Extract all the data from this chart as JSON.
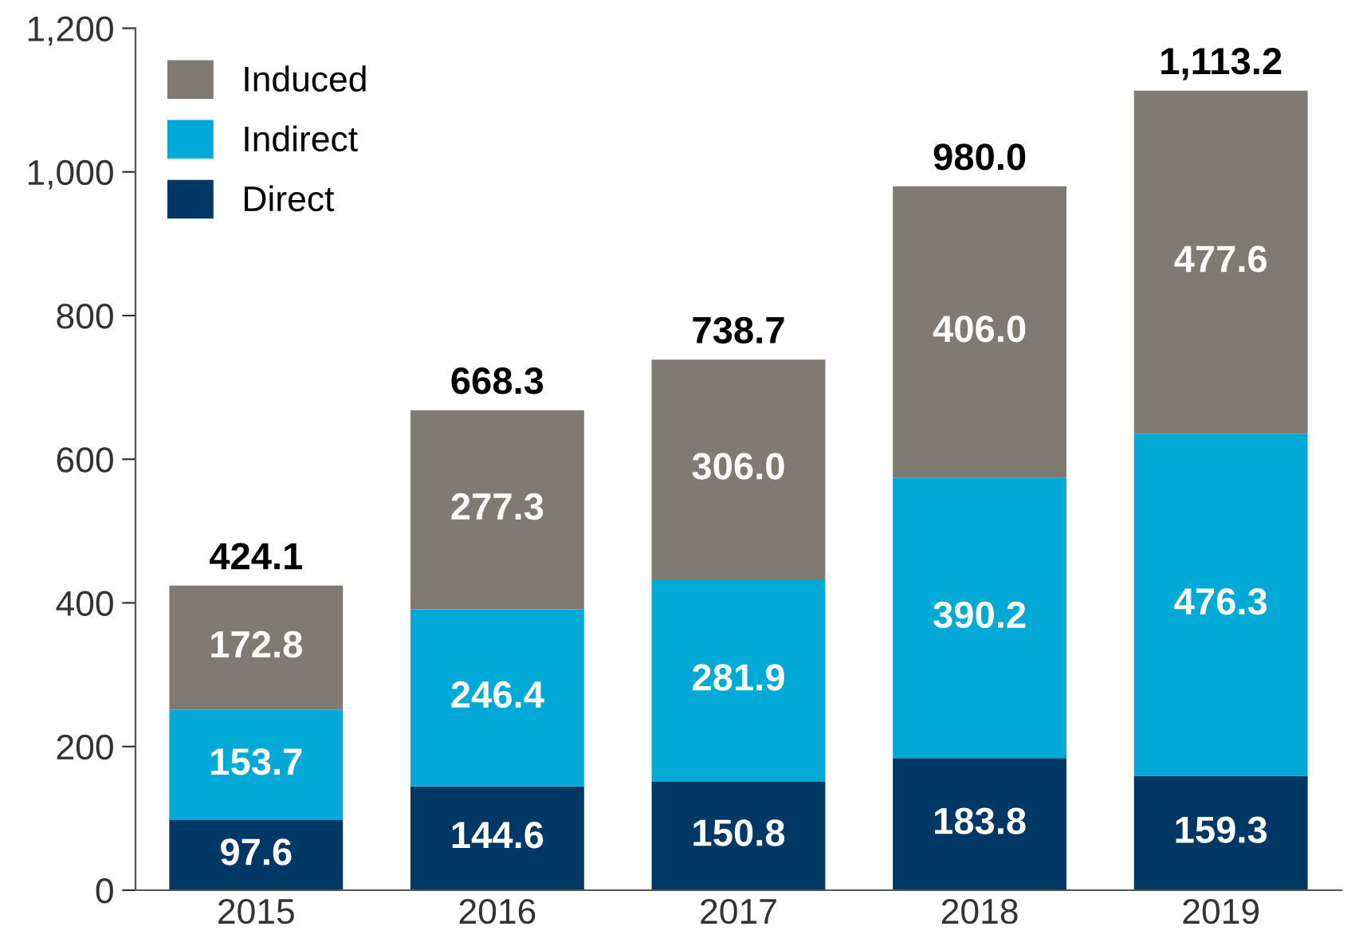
{
  "chart_data": {
    "type": "bar",
    "stacked": true,
    "categories": [
      "2015",
      "2016",
      "2017",
      "2018",
      "2019"
    ],
    "series": [
      {
        "name": "Direct",
        "color": "#003865",
        "values": [
          97.6,
          144.6,
          150.8,
          183.8,
          159.3
        ],
        "value_labels": [
          "97.6",
          "144.6",
          "150.8",
          "183.8",
          "159.3"
        ]
      },
      {
        "name": "Indirect",
        "color": "#00a9d6",
        "values": [
          153.7,
          246.4,
          281.9,
          390.2,
          476.3
        ],
        "value_labels": [
          "153.7",
          "246.4",
          "281.9",
          "390.2",
          "476.3"
        ]
      },
      {
        "name": "Induced",
        "color": "#7f7b73",
        "values": [
          172.8,
          277.3,
          306.0,
          406.0,
          477.6
        ],
        "value_labels": [
          "172.8",
          "277.3",
          "306.0",
          "406.0",
          "477.6"
        ]
      }
    ],
    "totals": [
      "424.1",
      "668.3",
      "738.7",
      "980.0",
      "1,113.2"
    ],
    "ylim": [
      0,
      1200
    ],
    "yticks": [
      0,
      200,
      400,
      600,
      800,
      {
        "value": 1000,
        "label": "1,000"
      },
      {
        "value": 1200,
        "label": "1,200"
      }
    ],
    "grid": false,
    "legend": "top left"
  }
}
